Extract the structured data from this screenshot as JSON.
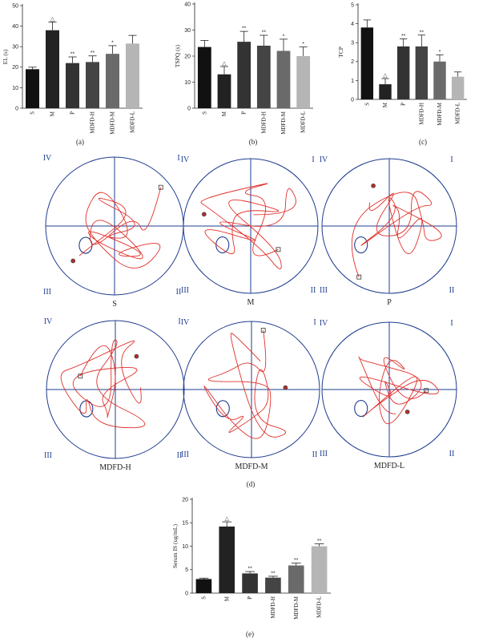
{
  "chart_data": [
    {
      "type": "bar",
      "panel": "(a)",
      "ylabel": "EL (s)",
      "ylim": [
        0,
        50
      ],
      "yticks": [
        0,
        10,
        20,
        30,
        40,
        50
      ],
      "categories": [
        "S",
        "M",
        "P",
        "MDFD-H",
        "MDFD-M",
        "MDFD-L"
      ],
      "values": [
        19,
        38,
        22,
        22.5,
        26.5,
        31.5
      ],
      "errors": [
        1,
        4,
        3,
        3,
        4,
        4
      ],
      "significance": [
        "",
        "△",
        "**",
        "**",
        "*",
        ""
      ],
      "colors": [
        "#111111",
        "#222222",
        "#333333",
        "#444444",
        "#6a6a6a",
        "#b5b5b5"
      ]
    },
    {
      "type": "bar",
      "panel": "(b)",
      "ylabel": "TSPQ (s)",
      "ylim": [
        0,
        40
      ],
      "yticks": [
        0,
        10,
        20,
        30,
        40
      ],
      "categories": [
        "S",
        "M",
        "P",
        "MDFD-H",
        "MDFD-M",
        "MDFD-L"
      ],
      "values": [
        23.5,
        13,
        25.5,
        24,
        22,
        20
      ],
      "errors": [
        2.5,
        3,
        4,
        4,
        4.5,
        3.5
      ],
      "significance": [
        "",
        "△",
        "**",
        "**",
        "*",
        "*"
      ],
      "colors": [
        "#111111",
        "#222222",
        "#333333",
        "#444444",
        "#6a6a6a",
        "#b5b5b5"
      ]
    },
    {
      "type": "bar",
      "panel": "(c)",
      "ylabel": "TCP",
      "ylim": [
        0,
        5
      ],
      "yticks": [
        0,
        1,
        2,
        3,
        4,
        5
      ],
      "categories": [
        "S",
        "M",
        "P",
        "MDFD-H",
        "MDFD-M",
        "MDFD-L"
      ],
      "values": [
        3.8,
        0.8,
        2.8,
        2.8,
        2,
        1.2
      ],
      "errors": [
        0.4,
        0.3,
        0.4,
        0.6,
        0.35,
        0.25
      ],
      "significance": [
        "",
        "△",
        "**",
        "**",
        "*",
        ""
      ],
      "colors": [
        "#111111",
        "#222222",
        "#333333",
        "#444444",
        "#6a6a6a",
        "#b5b5b5"
      ]
    },
    {
      "type": "bar",
      "panel": "(e)",
      "ylabel": "Serum IS (ug/mL)",
      "ylim": [
        0,
        20
      ],
      "yticks": [
        0,
        5,
        10,
        15,
        20
      ],
      "categories": [
        "S",
        "M",
        "P",
        "MDFD-H",
        "MDFD-M",
        "MDFD-L"
      ],
      "values": [
        3,
        14.2,
        4.2,
        3.3,
        5.9,
        10
      ],
      "errors": [
        0.2,
        1,
        0.4,
        0.3,
        0.5,
        0.5
      ],
      "significance": [
        "",
        "△",
        "**",
        "**",
        "**",
        "**"
      ],
      "colors": [
        "#111111",
        "#222222",
        "#333333",
        "#444444",
        "#6a6a6a",
        "#b5b5b5"
      ]
    }
  ],
  "maze_panel": {
    "caption": "(d)",
    "quadrants": [
      "IV",
      "I",
      "III",
      "II"
    ],
    "groups": [
      "S",
      "M",
      "P",
      "MDFD-H",
      "MDFD-M",
      "MDFD-L"
    ],
    "colors": {
      "circle": "#1f3d8f",
      "path": "#e0302a"
    }
  }
}
